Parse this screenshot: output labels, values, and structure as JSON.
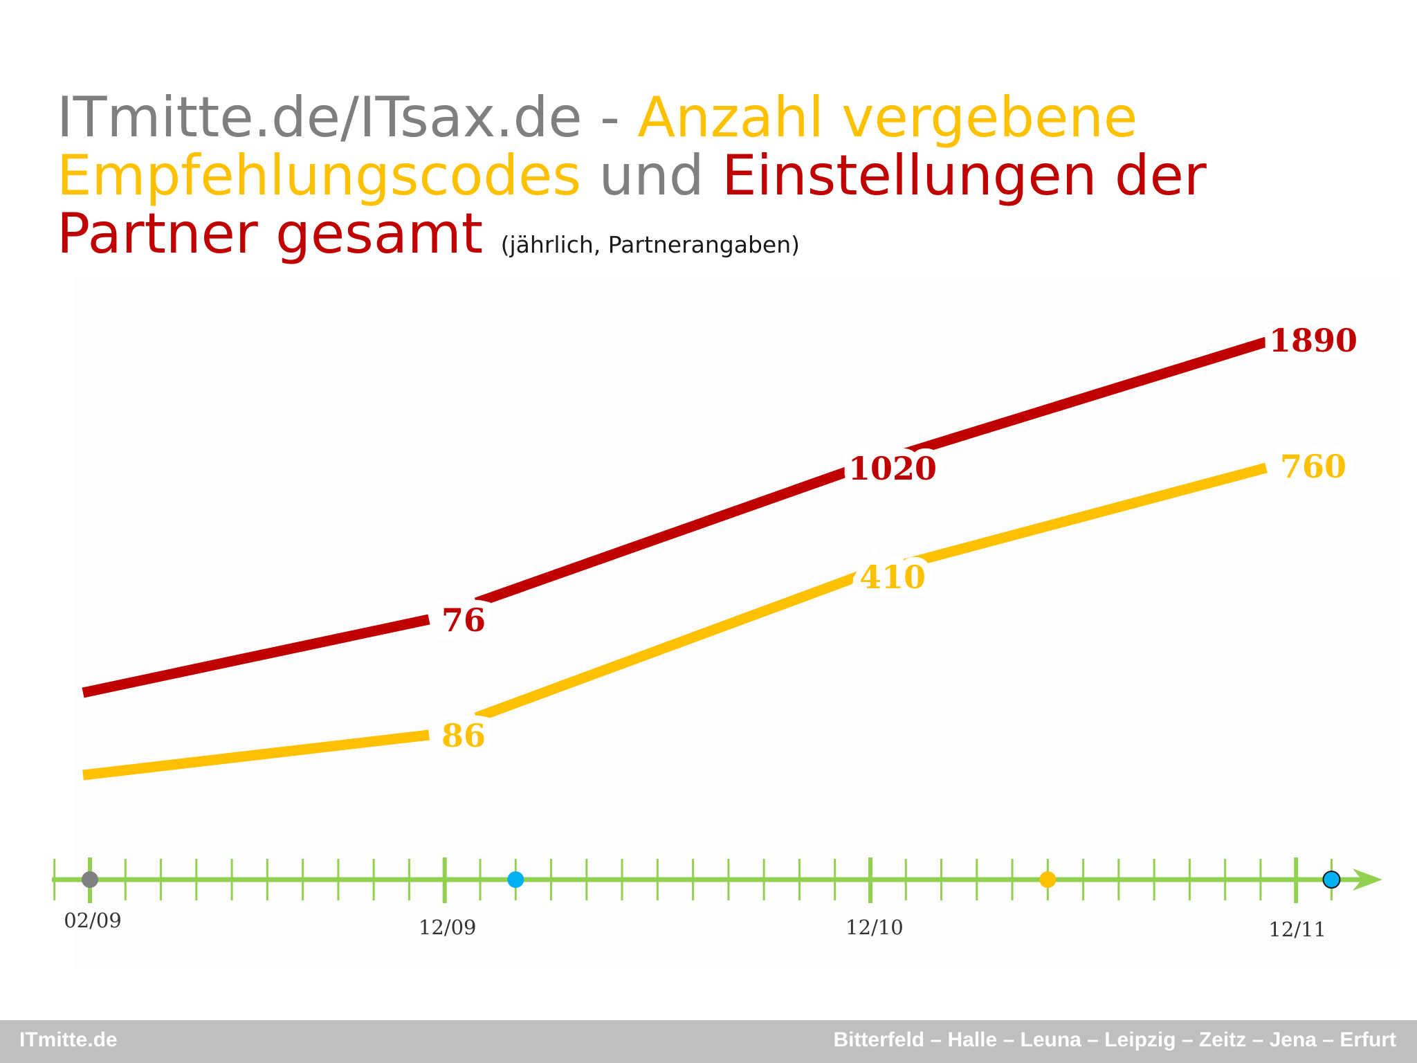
{
  "title": {
    "part1": "ITmitte.de/ITsax.de - ",
    "part2": "Anzahl vergebene Empfehlungscodes",
    "part3": " und ",
    "part4": "Einstellungen der Partner gesamt",
    "subtitle": "(jährlich, Partnerangaben)"
  },
  "colors": {
    "grey": "#7f7f7f",
    "yellow": "#fdc100",
    "red": "#c00000",
    "axis_green": "#92d050",
    "marker_grey": "#808080",
    "marker_blue": "#00b0f0",
    "marker_orange": "#fdc100",
    "footer_bg": "#bfbfbf"
  },
  "chart_data": {
    "type": "line",
    "x": [
      "02/09",
      "12/09",
      "12/10",
      "12/11"
    ],
    "x_months": [
      0,
      10,
      22,
      34
    ],
    "series": [
      {
        "color": "#c00000",
        "values": [
          null,
          76,
          1020,
          1890
        ],
        "labels": [
          "",
          "76",
          "1020",
          "1890"
        ]
      },
      {
        "color": "#fdc100",
        "values": [
          null,
          86,
          410,
          760
        ],
        "labels": [
          "",
          "86",
          "410",
          "760"
        ]
      }
    ],
    "timeline": {
      "tick_labels": [
        "02/09",
        "12/09",
        "12/10",
        "12/11"
      ],
      "markers": [
        {
          "month": 0,
          "color": "#808080"
        },
        {
          "month": 12,
          "color": "#00b0f0"
        },
        {
          "month": 27,
          "color": "#fdc100"
        },
        {
          "month": 35,
          "color": "#00b0f0"
        }
      ]
    },
    "grid": false,
    "legend": "none"
  },
  "footer": {
    "left": "ITmitte.de",
    "right": "Bitterfeld – Halle – Leuna – Leipzig – Zeitz – Jena – Erfurt"
  }
}
